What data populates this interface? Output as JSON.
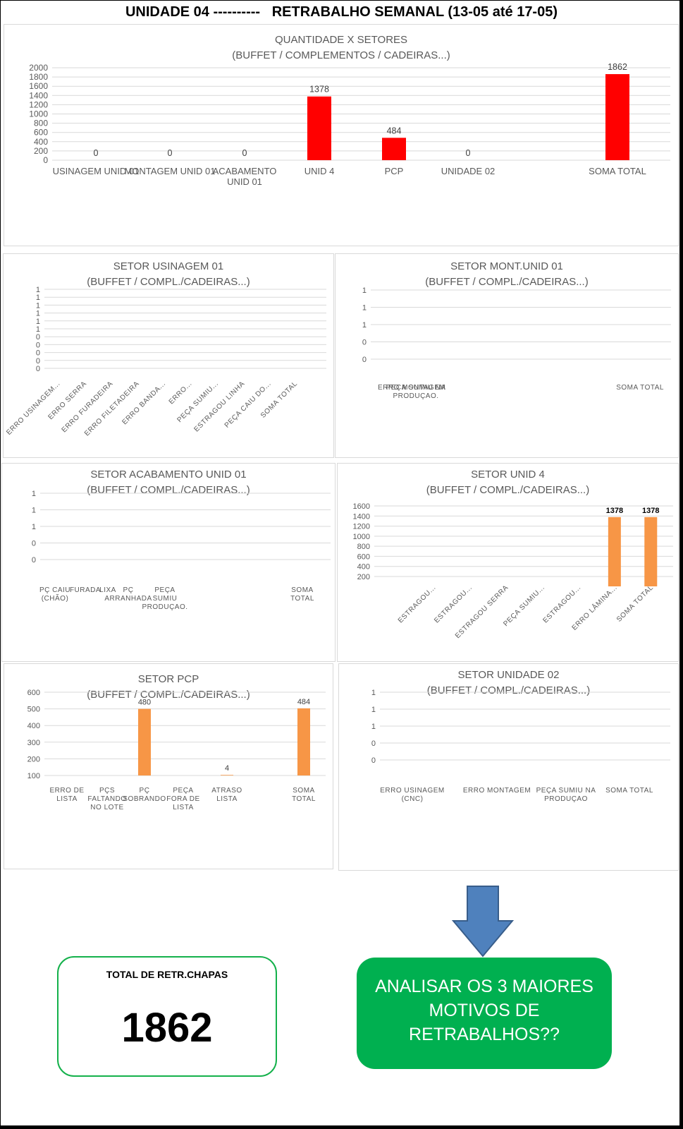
{
  "page": {
    "title": "UNIDADE 04 ----------   RETRABALHO SEMANAL (13-05 até 17-05)"
  },
  "chart_data": [
    {
      "id": "main",
      "type": "bar",
      "title": "QUANTIDADE X SETORES",
      "subtitle": "(BUFFET / COMPLEMENTOS / CADEIRAS...)",
      "categories": [
        "USINAGEM UNID 01",
        "MONTAGEM UNID 01",
        "ACABAMENTO UNID 01",
        "UNID 4",
        "PCP",
        "UNIDADE 02",
        "SOMA TOTAL"
      ],
      "values": [
        0,
        0,
        0,
        1378,
        484,
        0,
        1862
      ],
      "data_labels": [
        "0",
        "0",
        "0",
        "1378",
        "484",
        "0",
        "1862"
      ],
      "ylim": [
        0,
        2000
      ],
      "yticks": [
        "0",
        "200",
        "400",
        "600",
        "800",
        "1000",
        "1200",
        "1400",
        "1600",
        "1800",
        "2000"
      ],
      "color": "#ff0000",
      "grid": true
    },
    {
      "id": "usinagem",
      "type": "bar",
      "title": "SETOR USINAGEM 01",
      "subtitle": "(BUFFET / COMPL./CADEIRAS...)",
      "categories": [
        "ERRO USINAGEM...",
        "ERRO SERRA",
        "ERRO FURADEIRA",
        "ERRO FILETADEIRA",
        "ERRO BANDA...",
        "ERRO...",
        "PEÇA SUMIU...",
        "ESTRAGOU LINHA",
        "PEÇA CAIU DO...",
        "SOMA TOTAL"
      ],
      "values": [
        0,
        0,
        0,
        0,
        0,
        0,
        0,
        0,
        0,
        0
      ],
      "yticks": [
        "0",
        "0",
        "0",
        "0",
        "0",
        "1",
        "1",
        "1",
        "1",
        "1",
        "1"
      ],
      "color": "#f79646",
      "grid": true
    },
    {
      "id": "montagem",
      "type": "bar",
      "title": "SETOR  MONT.UNID 01",
      "subtitle": "(BUFFET / COMPL./CADEIRAS...)",
      "categories": [
        "ERRO MONTAGEM",
        "PEÇA SUMIU NA PRODUÇAO.",
        "SOMA TOTAL"
      ],
      "values": [
        0,
        0,
        0
      ],
      "yticks": [
        "0",
        "0",
        "1",
        "1",
        "1"
      ],
      "color": "#f79646",
      "grid": true
    },
    {
      "id": "acabamento",
      "type": "bar",
      "title": "SETOR ACABAMENTO UNID 01",
      "subtitle": "(BUFFET / COMPL./CADEIRAS...)",
      "categories": [
        "PÇ CAIU (CHÃO)",
        "FURADA",
        "LIXA",
        "PÇ ARRANHADA",
        "PEÇA SUMIU PRODUÇAO.",
        "SOMA TOTAL"
      ],
      "values": [
        0,
        0,
        0,
        0,
        0,
        0
      ],
      "yticks": [
        "0",
        "0",
        "1",
        "1",
        "1"
      ],
      "color": "#f79646",
      "grid": true
    },
    {
      "id": "unid4",
      "type": "bar",
      "title": "SETOR UNID 4",
      "subtitle": "(BUFFET / COMPL./CADEIRAS...)",
      "categories": [
        "ESTRAGOU...",
        "ESTRAGOU...",
        "ESTRAGOU SERRA",
        "PEÇA SUMIU...",
        "ESTRAGOU...",
        "ERRO LÂMINA...",
        "SOMA TOTAL"
      ],
      "values": [
        0,
        0,
        0,
        0,
        0,
        1378,
        1378
      ],
      "data_labels": [
        "",
        "",
        "",
        "",
        "",
        "1378",
        "1378"
      ],
      "ylim": [
        100,
        1600
      ],
      "yticks": [
        "200",
        "400",
        "600",
        "800",
        "1000",
        "1200",
        "1400",
        "1600"
      ],
      "color": "#f79646",
      "grid": true
    },
    {
      "id": "pcp",
      "type": "bar",
      "title": "SETOR PCP",
      "subtitle": "(BUFFET / COMPL./CADEIRAS...)",
      "categories": [
        "ERRO DE LISTA",
        "PÇS FALTANDO NO LOTE",
        "PÇ SOBRANDO",
        "PEÇA FORA DE LISTA",
        "ATRASO LISTA",
        "SOMA TOTAL"
      ],
      "values": [
        0,
        0,
        480,
        0,
        4,
        484
      ],
      "data_labels": [
        "",
        "",
        "480",
        "",
        "4",
        "484"
      ],
      "ylim": [
        0,
        600
      ],
      "yticks": [
        "100",
        "200",
        "300",
        "400",
        "500",
        "600"
      ],
      "color": "#f79646",
      "grid": true
    },
    {
      "id": "unidade02",
      "type": "bar",
      "title": "SETOR  UNIDADE 02",
      "subtitle": "(BUFFET / COMPL./CADEIRAS...)",
      "categories": [
        "ERRO USINAGEM (CNC)",
        "ERRO MONTAGEM",
        "PEÇA SUMIU  NA PRODUÇAO",
        "SOMA TOTAL"
      ],
      "values": [
        0,
        0,
        0,
        0
      ],
      "yticks": [
        "0",
        "0",
        "1",
        "1",
        "1"
      ],
      "color": "#f79646",
      "grid": true
    }
  ],
  "summary": {
    "total_label": "TOTAL DE RETR.CHAPAS",
    "total_value": "1862",
    "cta_text": "ANALISAR OS 3 MAIORES MOTIVOS DE RETRABALHOS??"
  },
  "colors": {
    "arrow": "#4f81bd",
    "card_border": "#14b14b",
    "cta_bg": "#00b050"
  }
}
